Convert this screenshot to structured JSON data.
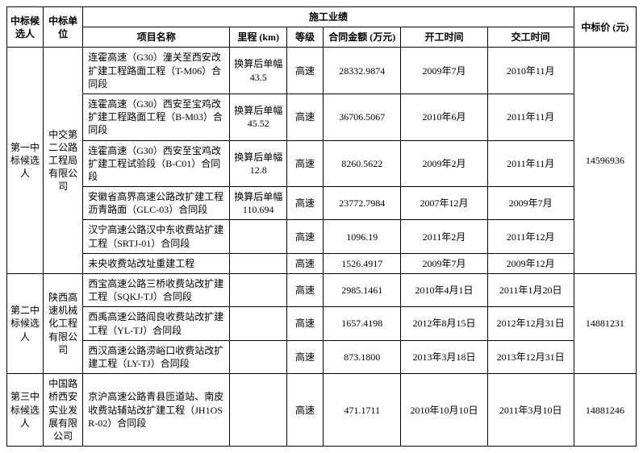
{
  "headers": {
    "candidate": "中标候选人",
    "unit": "中标单位",
    "achievement": "施工业绩",
    "project": "项目名称",
    "mileage": "里程 (km)",
    "grade": "等级",
    "amount": "合同金额 (万元)",
    "start": "开工时间",
    "finish": "交工时间",
    "price": "中标价 (元)"
  },
  "candidates": [
    {
      "rank": "第一中标候选人",
      "unit": "中交第二公路工程局有限公司",
      "price": "14596936",
      "projects": [
        {
          "name": "连霍高速（G30）潼关至西安改扩建工程路面工程（T-M06）合同段",
          "mileage": "换算后单幅43.5",
          "grade": "高速",
          "amount": "28332.9874",
          "start": "2009年7月",
          "finish": "2010年11月"
        },
        {
          "name": "连霍高速（G30）西安至宝鸡改扩建工程路面工程（B-M03）合同段",
          "mileage": "换算后单幅45.52",
          "grade": "高速",
          "amount": "36706.5067",
          "start": "2010年6月",
          "finish": "2011年11月"
        },
        {
          "name": "连霍高速（G30）西安至宝鸡改扩建工程试验段（B-C01）合同段",
          "mileage": "换算后单幅12.8",
          "grade": "高速",
          "amount": "8260.5622",
          "start": "2009年2月",
          "finish": "2011年11月"
        },
        {
          "name": "安徽省高界高速公路改扩建工程沥青路面（GLC-03）合同段",
          "mileage": "换算后单幅110.694",
          "grade": "高速",
          "amount": "23772.7984",
          "start": "2007年12月",
          "finish": "2009年7月"
        },
        {
          "name": "汉宁高速公路汉中东收费站扩建工程（SRTJ-01）合同段",
          "mileage": "",
          "grade": "高速",
          "amount": "1096.19",
          "start": "2011年2月",
          "finish": "2011年12月"
        },
        {
          "name": "未央收费站改址重建工程",
          "mileage": "",
          "grade": "高速",
          "amount": "1526.4917",
          "start": "2009年7月",
          "finish": "2009年12月"
        }
      ]
    },
    {
      "rank": "第二中标候选人",
      "unit": "陕西高速机械化工程有限公司",
      "price": "14881231",
      "projects": [
        {
          "name": "西宝高速公路三桥收费站改扩建工程（SQKJ-TJ）合同段",
          "mileage": "",
          "grade": "高速",
          "amount": "2985.1461",
          "start": "2010年4月1日",
          "finish": "2011年1月20日"
        },
        {
          "name": "西禹高速公路阎良收费站改扩建工程（YL-TJ）合同段",
          "mileage": "",
          "grade": "高速",
          "amount": "1657.4198",
          "start": "2012年8月15日",
          "finish": "2012年12月31日"
        },
        {
          "name": "西汉高速公路涝峪口收费站改扩建工程（LY-TJ）合同段",
          "mileage": "",
          "grade": "高速",
          "amount": "873.1800",
          "start": "2013年3月18日",
          "finish": "2013年12月31日"
        }
      ]
    },
    {
      "rank": "第三中标候选人",
      "unit": "中国路桥西安实业发展有限公司",
      "price": "14881246",
      "projects": [
        {
          "name": "京沪高速公路青县匝道站、南皮收费站辅站改扩建工程（JH1OSR-02）合同段",
          "mileage": "",
          "grade": "高速",
          "amount": "471.1711",
          "start": "2010年10月10日",
          "finish": "2011年3月10日"
        }
      ]
    }
  ]
}
